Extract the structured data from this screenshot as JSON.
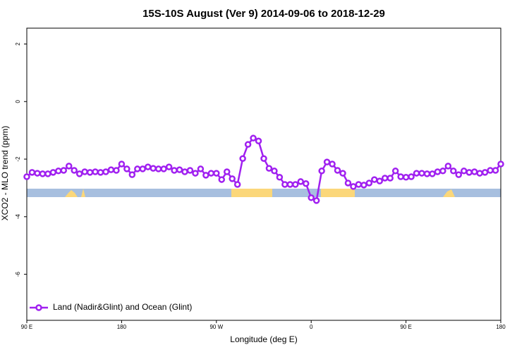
{
  "chart_data": {
    "type": "line",
    "title": "15S-10S August (Ver 9)   2014-09-06 to 2018-12-29",
    "x_label": "Longitude (deg E)",
    "y_label": "XCO2 - MLO trend (ppm)",
    "xlim": [
      90,
      540
    ],
    "ylim": [
      -7.6,
      2.55
    ],
    "xticks": [
      {
        "value": 90,
        "label": "90 E"
      },
      180,
      {
        "value": 270,
        "label": "90 W"
      },
      {
        "value": 360,
        "label": "0"
      },
      {
        "value": 450,
        "label": "90 E"
      },
      {
        "value": 540,
        "label": "180"
      }
    ],
    "yticks": [
      2,
      0,
      -2,
      -4,
      -6
    ],
    "legend_position": "bottom-left",
    "x": [
      90,
      95,
      100,
      105,
      110,
      115,
      120,
      125,
      130,
      135,
      140,
      145,
      150,
      155,
      160,
      165,
      170,
      175,
      180,
      185,
      190,
      195,
      200,
      205,
      210,
      215,
      220,
      225,
      230,
      235,
      240,
      245,
      250,
      255,
      260,
      265,
      270,
      275,
      280,
      285,
      290,
      295,
      300,
      305,
      310,
      315,
      320,
      325,
      330,
      335,
      340,
      345,
      350,
      355,
      360,
      365,
      370,
      375,
      380,
      385,
      390,
      395,
      400,
      405,
      410,
      415,
      420,
      425,
      430,
      435,
      440,
      445,
      450,
      455,
      460,
      465,
      470,
      475,
      480,
      485,
      490,
      495,
      500,
      505,
      510,
      515,
      520,
      525,
      530,
      535,
      540
    ],
    "series": [
      {
        "name": "Land (Nadir&Glint) and Ocean (Glint)",
        "color": "#a020f0",
        "values": [
          -2.61,
          -2.46,
          -2.49,
          -2.51,
          -2.51,
          -2.46,
          -2.41,
          -2.39,
          -2.24,
          -2.39,
          -2.51,
          -2.44,
          -2.46,
          -2.44,
          -2.46,
          -2.44,
          -2.37,
          -2.39,
          -2.17,
          -2.34,
          -2.54,
          -2.34,
          -2.34,
          -2.27,
          -2.32,
          -2.34,
          -2.34,
          -2.27,
          -2.39,
          -2.37,
          -2.44,
          -2.39,
          -2.49,
          -2.34,
          -2.56,
          -2.49,
          -2.49,
          -2.71,
          -2.44,
          -2.68,
          -2.88,
          -1.98,
          -1.49,
          -1.27,
          -1.37,
          -1.98,
          -2.32,
          -2.41,
          -2.63,
          -2.88,
          -2.88,
          -2.88,
          -2.78,
          -2.85,
          -3.34,
          -3.44,
          -2.41,
          -2.1,
          -2.17,
          -2.39,
          -2.49,
          -2.83,
          -2.95,
          -2.88,
          -2.9,
          -2.83,
          -2.71,
          -2.76,
          -2.66,
          -2.66,
          -2.41,
          -2.61,
          -2.63,
          -2.61,
          -2.49,
          -2.49,
          -2.51,
          -2.51,
          -2.44,
          -2.41,
          -2.24,
          -2.41,
          -2.54,
          -2.41,
          -2.46,
          -2.44,
          -2.49,
          -2.46,
          -2.39,
          -2.39,
          -2.17
        ]
      }
    ]
  }
}
